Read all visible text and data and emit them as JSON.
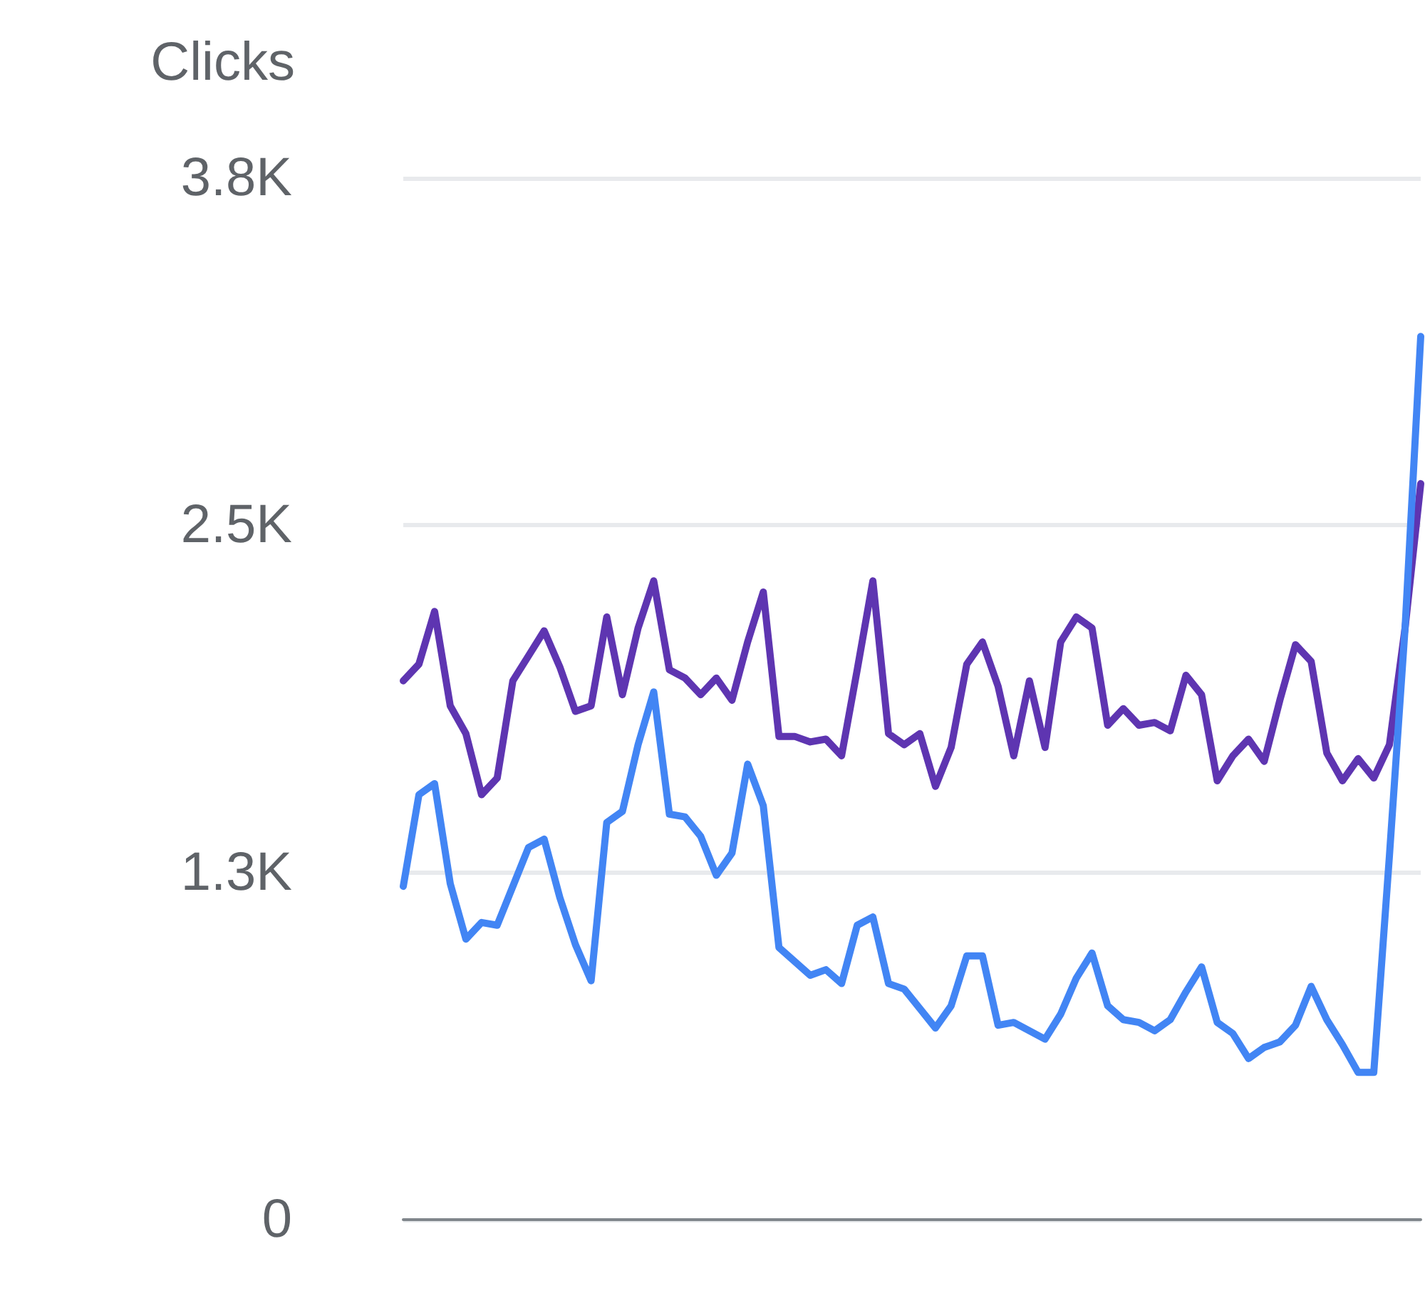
{
  "chart_data": {
    "type": "line",
    "ylabel": "Clicks",
    "ylim": [
      0,
      3750
    ],
    "yticks": [
      0,
      {
        "value": 1250,
        "label": "1.3K"
      },
      {
        "value": 2500,
        "label": "2.5K"
      },
      {
        "value": 3750,
        "label": "3.8K"
      }
    ],
    "grid": "y",
    "marker": "none",
    "line_style": "solid",
    "categories": [
      null,
      null,
      null,
      null,
      null,
      null,
      null,
      null,
      null,
      null,
      null,
      null,
      null,
      null,
      null,
      null,
      null,
      null,
      null,
      null,
      null,
      null,
      null,
      null,
      null,
      null,
      null,
      null,
      null,
      null,
      null,
      null,
      null,
      null,
      null,
      null,
      null,
      null,
      null,
      null,
      null,
      null,
      null,
      null,
      null,
      null,
      null,
      null,
      null,
      null,
      null,
      null,
      null,
      null,
      null,
      null,
      null,
      null,
      null,
      null,
      null,
      null,
      null,
      null,
      null,
      null
    ],
    "series": [
      {
        "color": "#5e35b1",
        "values": [
          1940,
          2000,
          2190,
          1850,
          1750,
          1530,
          1590,
          1940,
          2030,
          2120,
          1990,
          1830,
          1850,
          2170,
          1890,
          2130,
          2300,
          1980,
          1950,
          1890,
          1950,
          1870,
          2080,
          2260,
          1740,
          1740,
          1720,
          1730,
          1670,
          1980,
          2300,
          1750,
          1710,
          1750,
          1560,
          1700,
          2000,
          2080,
          1920,
          1670,
          1940,
          1700,
          2080,
          2170,
          2130,
          1780,
          1840,
          1780,
          1790,
          1760,
          1960,
          1890,
          1580,
          1670,
          1730,
          1650,
          1870,
          2070,
          2010,
          1680,
          1580,
          1660,
          1590,
          1710,
          2130,
          2650
        ]
      },
      {
        "color": "#4285f4",
        "values": [
          1200,
          1530,
          1570,
          1210,
          1010,
          1070,
          1060,
          1200,
          1340,
          1370,
          1160,
          990,
          860,
          1430,
          1470,
          1710,
          1900,
          1460,
          1450,
          1380,
          1240,
          1320,
          1640,
          1490,
          980,
          930,
          880,
          900,
          850,
          1060,
          1090,
          850,
          830,
          760,
          690,
          770,
          950,
          950,
          700,
          710,
          680,
          650,
          740,
          870,
          960,
          770,
          720,
          710,
          680,
          720,
          820,
          910,
          710,
          670,
          580,
          620,
          640,
          700,
          840,
          720,
          630,
          530,
          530,
          1310,
          2130,
          3180
        ]
      }
    ]
  }
}
